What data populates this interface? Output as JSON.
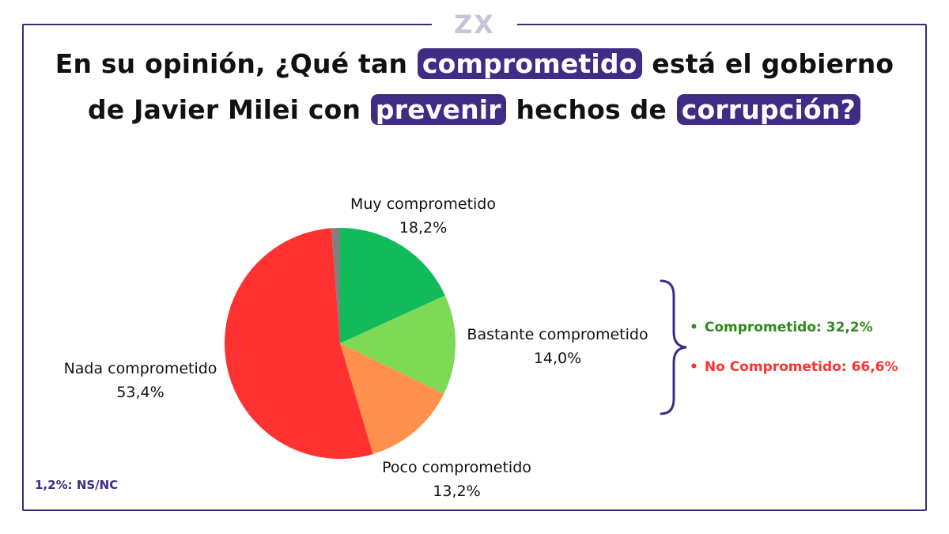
{
  "brand": {
    "logo_text": "ZX",
    "logo_color": "#c8c5d6",
    "frame_color": "#3a2a7a"
  },
  "title": {
    "part1": "En su opinión, ¿Qué tan ",
    "highlight1": "comprometido",
    "part2": " está el gobierno de Javier Milei con ",
    "highlight2": "prevenir",
    "part3": " hechos de ",
    "highlight3": "corrupción?",
    "highlight_color": "#3f2c85"
  },
  "chart_data": {
    "type": "pie",
    "title": "En su opinión, ¿Qué tan comprometido está el gobierno de Javier Milei con prevenir hechos de corrupción?",
    "start": "top",
    "direction": "clockwise",
    "slices": [
      {
        "label": "Muy comprometido",
        "value": 18.2,
        "value_label": "18,2%",
        "color": "#11bb5c"
      },
      {
        "label": "Bastante comprometido",
        "value": 14.0,
        "value_label": "14,0%",
        "color": "#7ed957"
      },
      {
        "label": "Poco comprometido",
        "value": 13.2,
        "value_label": "13,2%",
        "color": "#ff914d"
      },
      {
        "label": "Nada comprometido",
        "value": 53.4,
        "value_label": "53,4%",
        "color": "#ff3131"
      },
      {
        "label": "NS/NC",
        "value": 1.2,
        "value_label": "1,2%",
        "color": "#7f7f7f"
      }
    ],
    "groups": [
      {
        "label": "Comprometido: 32,2%",
        "color": "#2e8b1e"
      },
      {
        "label": "No Comprometido: 66,6%",
        "color": "#ff3131"
      }
    ],
    "note": "1,2%: NS/NC"
  }
}
